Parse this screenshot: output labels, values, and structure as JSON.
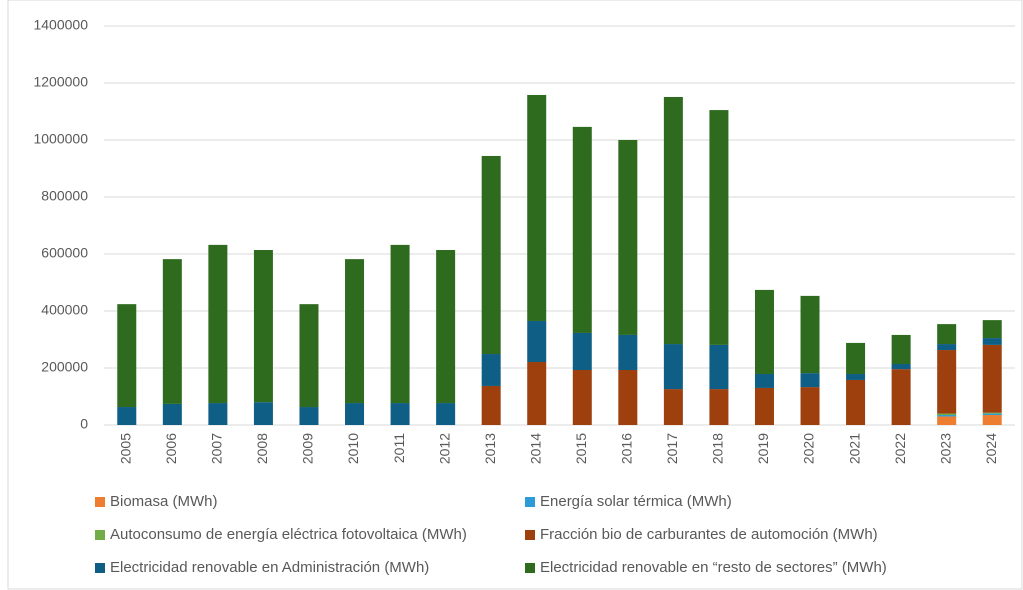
{
  "chart_data": {
    "type": "bar",
    "stacked": true,
    "categories": [
      "2005",
      "2006",
      "2007",
      "2008",
      "2009",
      "2010",
      "2011",
      "2012",
      "2013",
      "2014",
      "2015",
      "2016",
      "2017",
      "2018",
      "2019",
      "2020",
      "2021",
      "2022",
      "2023",
      "2024"
    ],
    "series": [
      {
        "name": "Biomasa (MWh)",
        "color": "#ed7d31",
        "values": [
          0,
          0,
          0,
          0,
          0,
          0,
          0,
          0,
          0,
          0,
          0,
          0,
          0,
          0,
          0,
          0,
          0,
          0,
          30000,
          35000
        ]
      },
      {
        "name": "Energía solar térmica (MWh)",
        "color": "#2e9bd6",
        "values": [
          0,
          0,
          0,
          0,
          0,
          0,
          0,
          0,
          0,
          0,
          0,
          0,
          0,
          0,
          0,
          0,
          0,
          0,
          5000,
          5000
        ]
      },
      {
        "name": "Autoconsumo de energía eléctrica fotovoltaica (MWh)",
        "color": "#70ad47",
        "values": [
          0,
          0,
          0,
          0,
          0,
          0,
          0,
          0,
          0,
          0,
          0,
          0,
          0,
          0,
          0,
          0,
          0,
          0,
          5000,
          3000
        ]
      },
      {
        "name": "Fracción bio de carburantes de automoción (MWh)",
        "color": "#9e3f0e",
        "values": [
          0,
          0,
          0,
          0,
          0,
          0,
          0,
          0,
          137000,
          221000,
          193000,
          193000,
          126000,
          126000,
          130000,
          133000,
          158000,
          196000,
          223000,
          238000
        ]
      },
      {
        "name": "Electricidad renovable en Administración (MWh)",
        "color": "#0f5e85",
        "values": [
          63000,
          74000,
          77000,
          80000,
          63000,
          77000,
          77000,
          77000,
          112000,
          144000,
          130000,
          123000,
          158000,
          155000,
          49000,
          49000,
          21000,
          18000,
          21000,
          24000
        ]
      },
      {
        "name": "Electricidad renovable en “resto de sectores” (MWh)",
        "color": "#2e6b1f",
        "values": [
          361000,
          508000,
          555000,
          534000,
          361000,
          505000,
          555000,
          537000,
          695000,
          793000,
          723000,
          684000,
          867000,
          824000,
          295000,
          271000,
          109000,
          102000,
          70000,
          63000
        ]
      }
    ],
    "ylim": [
      0,
      1400000
    ],
    "yticks": [
      0,
      200000,
      400000,
      600000,
      800000,
      1000000,
      1200000,
      1400000
    ],
    "grid": true,
    "legend": "bottom"
  }
}
